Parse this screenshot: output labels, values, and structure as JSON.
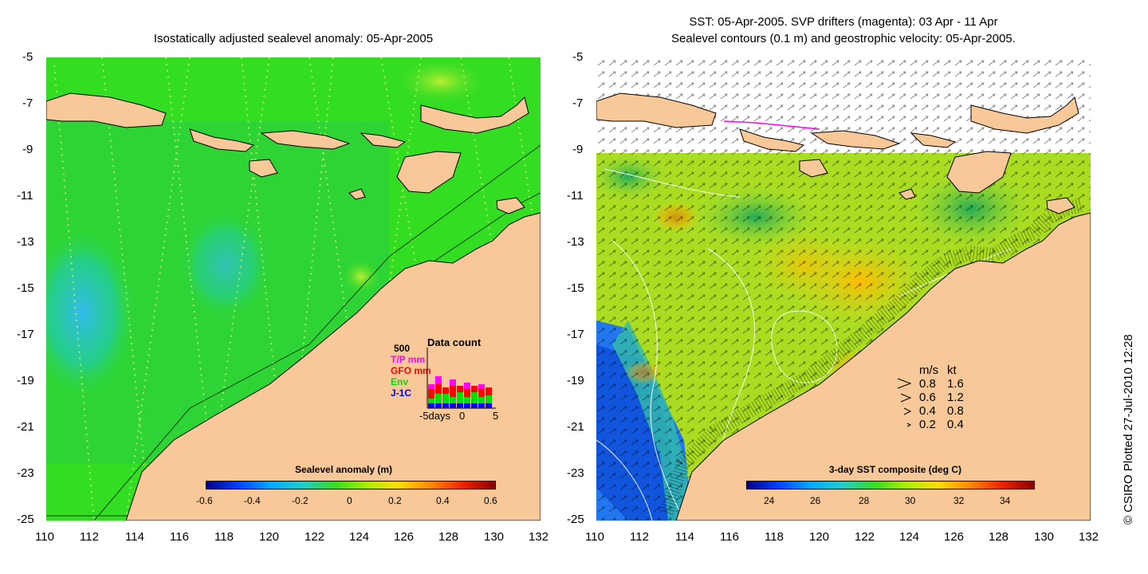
{
  "left_panel": {
    "title": "Isostatically adjusted sealevel anomaly: 05-Apr-2005",
    "colorbar_title": "Sealevel anomaly (m)",
    "colorbar_ticks": [
      "-0.6",
      "-0.4",
      "-0.2",
      "0",
      "0.2",
      "0.4",
      "0.6"
    ],
    "data_count": {
      "title": "Data count",
      "max_label": "500",
      "sources": [
        {
          "label": "T/P mm",
          "color": "#ff00ff"
        },
        {
          "label": "GFO mm",
          "color": "#ff0000"
        },
        {
          "label": "Env",
          "color": "#00e000"
        },
        {
          "label": "J-1C",
          "color": "#0000ff"
        }
      ],
      "axis_labels": [
        "-5days",
        "0",
        "5"
      ]
    }
  },
  "right_panel": {
    "title_line1": "SST: 05-Apr-2005. SVP drifters (magenta): 03 Apr - 11 Apr",
    "title_line2": "Sealevel contours (0.1 m) and geostrophic velocity: 05-Apr-2005.",
    "colorbar_title": "3-day SST composite (deg C)",
    "colorbar_ticks": [
      "24",
      "26",
      "28",
      "30",
      "32",
      "34"
    ],
    "velocity_legend": {
      "header_ms": "m/s",
      "header_kt": "kt",
      "rows": [
        {
          "ms": "0.8",
          "kt": "1.6"
        },
        {
          "ms": "0.6",
          "kt": "1.2"
        },
        {
          "ms": "0.4",
          "kt": "0.8"
        },
        {
          "ms": "0.2",
          "kt": "0.4"
        }
      ]
    }
  },
  "axes": {
    "lat_ticks": [
      "-5",
      "-7",
      "-9",
      "-11",
      "-13",
      "-15",
      "-17",
      "-19",
      "-21",
      "-23",
      "-25"
    ],
    "lon_ticks": [
      "110",
      "112",
      "114",
      "116",
      "118",
      "120",
      "122",
      "124",
      "126",
      "128",
      "130",
      "132"
    ]
  },
  "credit": "© CSIRO Plotted 27-Jul-2010 12:28",
  "colors": {
    "land": "#f8c898",
    "ocean_green": "#33dd22",
    "ocean_cyan": "#22ccee"
  }
}
